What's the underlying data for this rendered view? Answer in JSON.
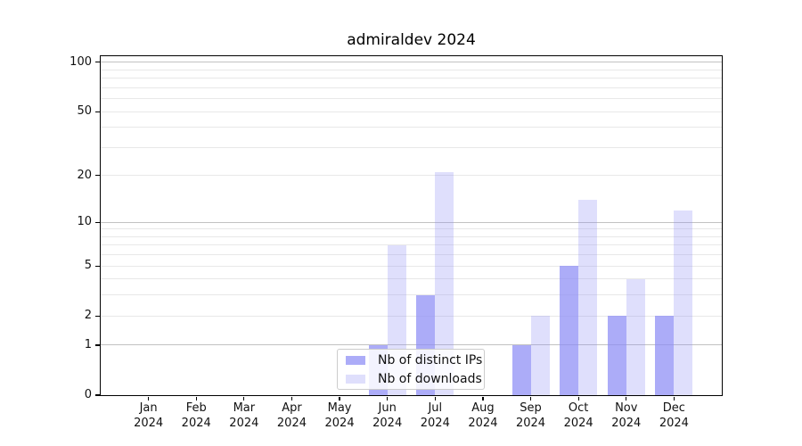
{
  "chart_data": {
    "type": "bar",
    "title": "admiraldev 2024",
    "year": "2024",
    "categories": [
      "Jan",
      "Feb",
      "Mar",
      "Apr",
      "May",
      "Jun",
      "Jul",
      "Aug",
      "Sep",
      "Oct",
      "Nov",
      "Dec"
    ],
    "series": [
      {
        "name": "Nb of distinct IPs",
        "color": "rgba(140,140,245,0.72)",
        "values": [
          0,
          0,
          0,
          0,
          0,
          1,
          3,
          0,
          1,
          5,
          2,
          2
        ]
      },
      {
        "name": "Nb of downloads",
        "color": "rgba(140,140,245,0.28)",
        "values": [
          0,
          0,
          0,
          0,
          0,
          7,
          21,
          0,
          2,
          14,
          4,
          12
        ]
      }
    ],
    "yscale": "log1p",
    "ylim": [
      0,
      109
    ],
    "y_ticks": [
      0,
      1,
      2,
      5,
      10,
      20,
      50,
      100
    ],
    "major_gridlines": [
      1,
      10,
      100
    ],
    "minor_gridlines": [
      2,
      3,
      4,
      5,
      6,
      7,
      8,
      9,
      20,
      30,
      40,
      50,
      60,
      70,
      80,
      90
    ],
    "legend_position": "lower center",
    "colors": {
      "bar_distinct_ips": "#acacf3",
      "bar_downloads": "#dedefb",
      "major_grid": "#c2c2c2",
      "minor_grid": "#e8e8e8",
      "spine": "#000000",
      "text": "#111111",
      "background": "#ffffff"
    }
  }
}
